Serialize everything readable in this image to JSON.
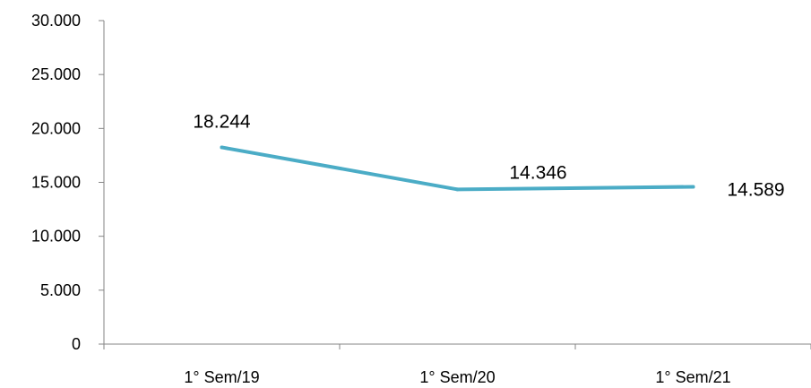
{
  "chart_data": {
    "type": "line",
    "title": "",
    "xlabel": "",
    "ylabel": "",
    "categories": [
      "1° Sem/19",
      "1° Sem/20",
      "1° Sem/21"
    ],
    "series": [
      {
        "values": [
          18244,
          14346,
          14589
        ],
        "labels": [
          "18.244",
          "14.346",
          "14.589"
        ]
      }
    ],
    "ylim": [
      0,
      30000
    ],
    "y_ticks": [
      0,
      5000,
      10000,
      15000,
      20000,
      25000,
      30000
    ],
    "y_tick_labels": [
      "0",
      "5.000",
      "10.000",
      "15.000",
      "20.000",
      "25.000",
      "30.000"
    ],
    "grid": false,
    "legend": "none",
    "line_color": "#4BACC6"
  }
}
